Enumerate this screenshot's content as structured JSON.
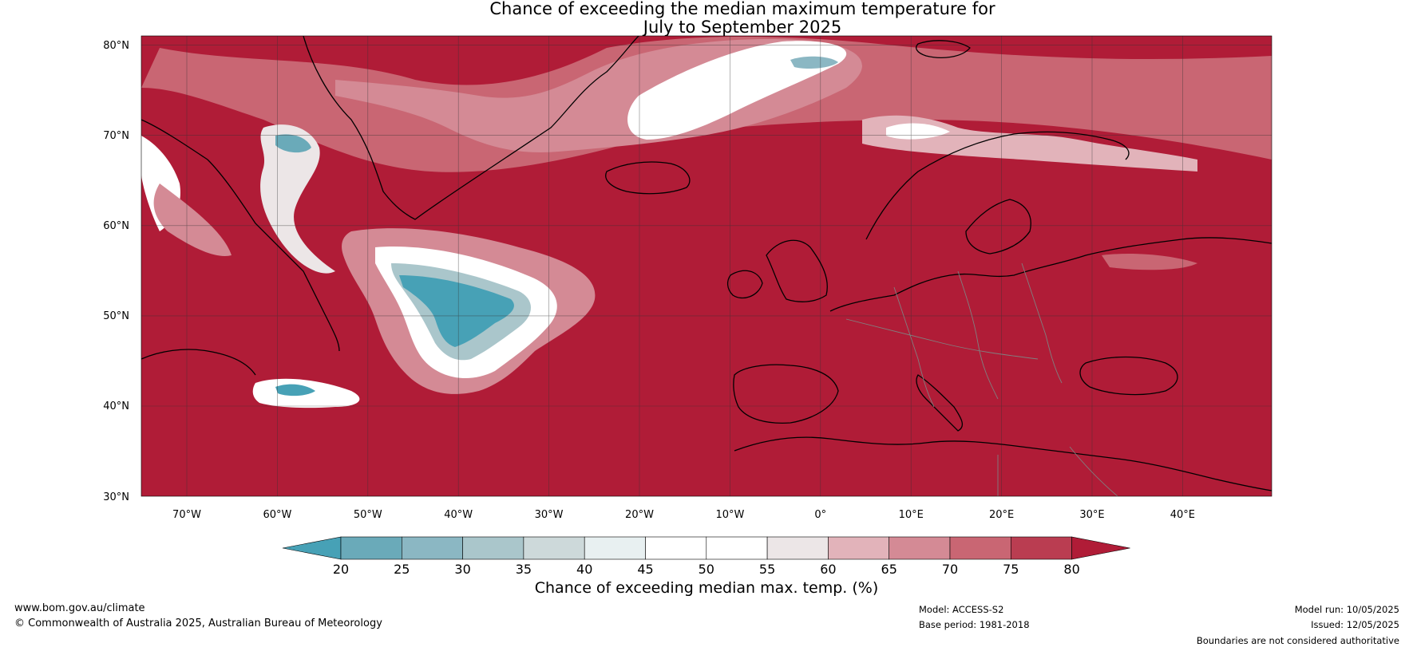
{
  "title": {
    "line1": "Chance of exceeding the median maximum temperature for",
    "line2": "July to September 2025"
  },
  "map": {
    "lat_labels": [
      "80°N",
      "70°N",
      "60°N",
      "50°N",
      "40°N",
      "30°N"
    ],
    "lon_labels": [
      "70°W",
      "60°W",
      "50°W",
      "40°W",
      "30°W",
      "20°W",
      "10°W",
      "0°",
      "10°E",
      "20°E",
      "30°E",
      "40°E"
    ],
    "colors": {
      "background": "#b01c37",
      "land_lines": "#000000",
      "borders": "#808080",
      "grid": "#333333"
    }
  },
  "colorbar": {
    "ticks": [
      "20",
      "25",
      "30",
      "35",
      "40",
      "45",
      "50",
      "55",
      "60",
      "65",
      "70",
      "75",
      "80"
    ],
    "colors": [
      "#47a1b6",
      "#6aaab9",
      "#8bb7c3",
      "#aac6cb",
      "#cdd9da",
      "#e8f0f1",
      "#ffffff",
      "#ffffff",
      "#ece6e7",
      "#e2b3ba",
      "#d48a95",
      "#c96673",
      "#ba3d51",
      "#b01c37"
    ],
    "label": "Chance of exceeding median max. temp. (%)"
  },
  "footer": {
    "url": "www.bom.gov.au/climate",
    "copyright": "© Commonwealth of Australia 2025, Australian Bureau of Meteorology",
    "model": "Model: ACCESS-S2",
    "base_period": "Base period: 1981-2018",
    "model_run": "Model run: 10/05/2025",
    "issued": "Issued: 12/05/2025",
    "disclaimer": "Boundaries are not considered authoritative"
  }
}
